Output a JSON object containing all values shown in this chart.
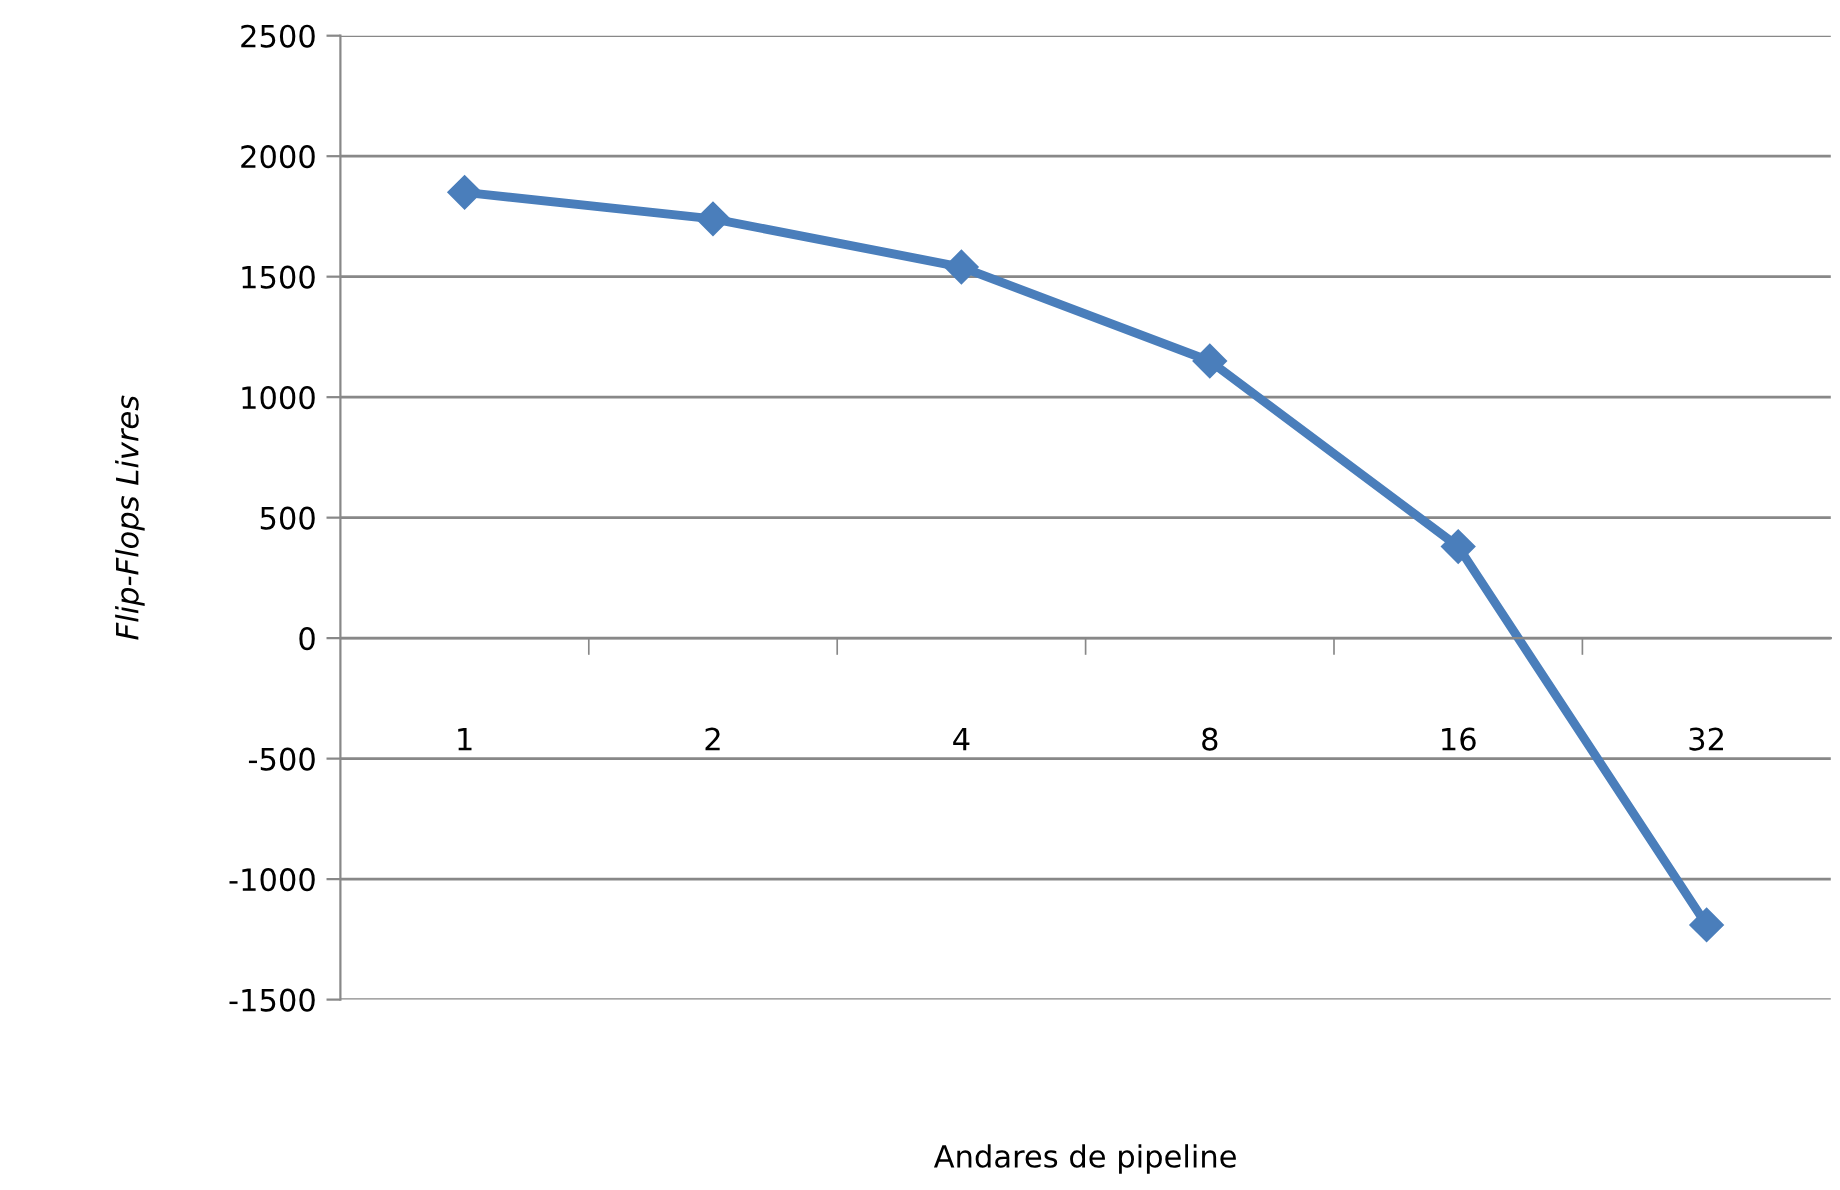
{
  "chart_data": {
    "type": "line",
    "xlabel": "Andares de pipeline",
    "ylabel": "Flip-Flops Livres",
    "categories": [
      "1",
      "2",
      "4",
      "8",
      "16",
      "32"
    ],
    "series": [
      {
        "color": "#4a7ebb",
        "values": [
          1850,
          1740,
          1540,
          1150,
          380,
          -1190
        ]
      }
    ],
    "ylim": [
      -1500,
      2500
    ],
    "yticks": [
      -1500,
      -1000,
      -500,
      0,
      500,
      1000,
      1500,
      2000,
      2500
    ],
    "grid": "y",
    "marker": "diamond",
    "line_style": "solid",
    "legend": false
  }
}
